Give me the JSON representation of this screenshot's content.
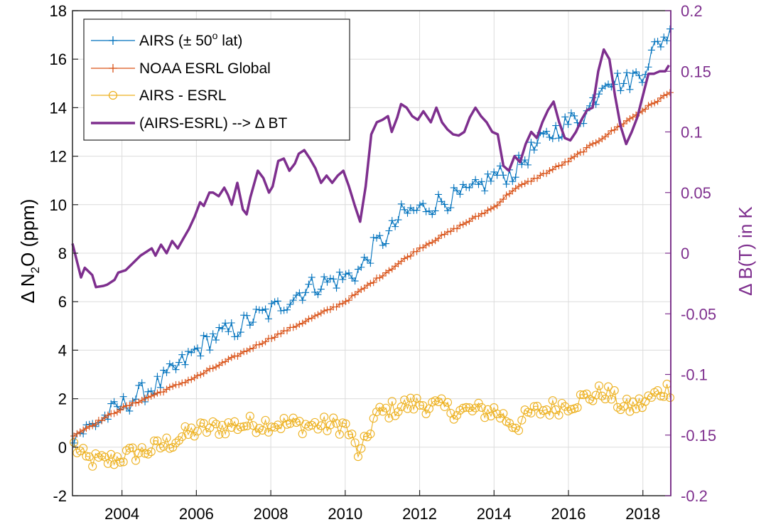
{
  "chart_data": {
    "type": "line",
    "x_ticks": [
      "2004",
      "2006",
      "2008",
      "2010",
      "2012",
      "2014",
      "2016",
      "2018"
    ],
    "x_tick_values": [
      2004,
      2006,
      2008,
      2010,
      2012,
      2014,
      2016,
      2018
    ],
    "xlim": [
      2002.67,
      2018.75
    ],
    "left_axis": {
      "label_prefix": "Δ N",
      "label_sub": "2",
      "label_suffix": "O (ppm)",
      "ylim": [
        -2,
        18
      ],
      "ticks": [
        "-2",
        "0",
        "2",
        "4",
        "6",
        "8",
        "10",
        "12",
        "14",
        "16",
        "18"
      ],
      "tick_values": [
        -2,
        0,
        2,
        4,
        6,
        8,
        10,
        12,
        14,
        16,
        18
      ]
    },
    "right_axis": {
      "label": "Δ B(T) in K",
      "ylim": [
        -0.2,
        0.2
      ],
      "ticks": [
        "-0.2",
        "-0.15",
        "-0.1",
        "-0.05",
        "0",
        "0.05",
        "0.1",
        "0.15",
        "0.2"
      ],
      "tick_values": [
        -0.2,
        -0.15,
        -0.1,
        -0.05,
        0,
        0.05,
        0.1,
        0.15,
        0.2
      ],
      "color": "#7E2F8E"
    },
    "grid": true,
    "legend_position": "top-left",
    "series": [
      {
        "name_main": "AIRS (± 50",
        "name_sup": "o",
        "name_tail": " lat)",
        "axis": "left",
        "color": "#0072BD",
        "marker": "plus",
        "anchors_x": [
          2002.7,
          2003.0,
          2003.5,
          2004.0,
          2004.5,
          2005.0,
          2005.5,
          2006.0,
          2006.5,
          2007.0,
          2007.5,
          2008.0,
          2008.5,
          2009.0,
          2009.5,
          2010.0,
          2010.4,
          2010.8,
          2011.2,
          2011.5,
          2012.0,
          2012.5,
          2013.0,
          2013.5,
          2014.0,
          2014.5,
          2015.0,
          2015.5,
          2016.0,
          2016.5,
          2017.0,
          2017.5,
          2018.0,
          2018.3,
          2018.6
        ],
        "anchors_y": [
          0.5,
          0.7,
          1.2,
          1.7,
          2.2,
          2.6,
          3.3,
          4.0,
          4.6,
          4.8,
          5.3,
          5.6,
          6.1,
          6.6,
          6.8,
          7.0,
          7.3,
          8.3,
          8.8,
          9.6,
          9.8,
          10.1,
          10.3,
          10.6,
          11.2,
          11.3,
          12.2,
          12.9,
          13.4,
          13.8,
          15.3,
          15.0,
          15.5,
          16.4,
          17.0
        ],
        "noise": 0.45
      },
      {
        "name": "NOAA ESRL Global",
        "axis": "left",
        "color": "#D95319",
        "marker": "plus",
        "anchors_x": [
          2002.7,
          2004.0,
          2006.0,
          2008.0,
          2010.0,
          2012.0,
          2014.0,
          2014.5,
          2016.0,
          2018.0,
          2018.7
        ],
        "anchors_y": [
          0.5,
          1.6,
          2.9,
          4.5,
          6.0,
          8.2,
          9.9,
          10.6,
          11.8,
          13.9,
          14.6
        ],
        "noise": 0.05
      },
      {
        "name": "AIRS - ESRL",
        "axis": "left",
        "color": "#EDB120",
        "marker": "circle",
        "anchors_x": [
          2002.7,
          2003.0,
          2003.5,
          2004.0,
          2005.0,
          2006.0,
          2007.0,
          2008.0,
          2009.0,
          2010.0,
          2010.4,
          2010.8,
          2011.5,
          2012.0,
          2013.0,
          2014.0,
          2014.6,
          2015.0,
          2016.0,
          2017.0,
          2017.5,
          2018.0,
          2018.6
        ],
        "anchors_y": [
          0.1,
          -0.5,
          -0.6,
          -0.4,
          0.0,
          0.7,
          0.9,
          1.0,
          0.9,
          0.9,
          -0.4,
          1.3,
          1.7,
          1.8,
          1.5,
          1.5,
          0.9,
          1.4,
          1.8,
          2.3,
          1.6,
          1.8,
          2.4
        ],
        "noise": 0.38
      },
      {
        "name": "(AIRS-ESRL) --> Δ BT",
        "axis": "right",
        "color": "#7E2F8E",
        "marker": "none",
        "x": [
          2002.67,
          2002.9,
          2003.0,
          2003.2,
          2003.3,
          2003.5,
          2003.6,
          2003.8,
          2003.9,
          2004.1,
          2004.3,
          2004.5,
          2004.6,
          2004.8,
          2004.9,
          2005.05,
          2005.2,
          2005.35,
          2005.5,
          2005.65,
          2005.8,
          2005.95,
          2006.1,
          2006.2,
          2006.35,
          2006.45,
          2006.6,
          2006.75,
          2006.85,
          2006.95,
          2007.1,
          2007.25,
          2007.35,
          2007.45,
          2007.65,
          2007.8,
          2007.95,
          2008.05,
          2008.2,
          2008.35,
          2008.5,
          2008.65,
          2008.75,
          2008.9,
          2009.05,
          2009.2,
          2009.35,
          2009.5,
          2009.65,
          2009.8,
          2009.95,
          2010.1,
          2010.25,
          2010.4,
          2010.55,
          2010.7,
          2010.85,
          2011.0,
          2011.15,
          2011.25,
          2011.4,
          2011.5,
          2011.65,
          2011.8,
          2011.95,
          2012.1,
          2012.3,
          2012.45,
          2012.6,
          2012.75,
          2012.9,
          2013.05,
          2013.2,
          2013.35,
          2013.5,
          2013.65,
          2013.8,
          2013.95,
          2014.1,
          2014.25,
          2014.4,
          2014.55,
          2014.7,
          2014.85,
          2015.0,
          2015.15,
          2015.3,
          2015.45,
          2015.6,
          2015.75,
          2015.9,
          2016.05,
          2016.2,
          2016.35,
          2016.5,
          2016.65,
          2016.8,
          2016.95,
          2017.1,
          2017.25,
          2017.4,
          2017.55,
          2017.7,
          2017.85,
          2018.0,
          2018.15,
          2018.3,
          2018.45,
          2018.6,
          2018.7
        ],
        "y": [
          0.008,
          -0.02,
          -0.012,
          -0.018,
          -0.028,
          -0.027,
          -0.026,
          -0.022,
          -0.016,
          -0.014,
          -0.008,
          -0.002,
          0.0,
          0.004,
          -0.002,
          0.007,
          0.0,
          0.01,
          0.004,
          0.012,
          0.02,
          0.03,
          0.042,
          0.039,
          0.05,
          0.05,
          0.047,
          0.054,
          0.048,
          0.04,
          0.058,
          0.036,
          0.032,
          0.046,
          0.068,
          0.062,
          0.05,
          0.055,
          0.076,
          0.078,
          0.068,
          0.074,
          0.082,
          0.085,
          0.078,
          0.07,
          0.058,
          0.064,
          0.058,
          0.064,
          0.068,
          0.055,
          0.04,
          0.026,
          0.055,
          0.098,
          0.108,
          0.11,
          0.113,
          0.1,
          0.112,
          0.123,
          0.12,
          0.113,
          0.11,
          0.117,
          0.108,
          0.12,
          0.108,
          0.102,
          0.098,
          0.097,
          0.1,
          0.112,
          0.12,
          0.113,
          0.108,
          0.1,
          0.098,
          0.072,
          0.068,
          0.08,
          0.075,
          0.09,
          0.1,
          0.095,
          0.108,
          0.118,
          0.125,
          0.108,
          0.095,
          0.093,
          0.1,
          0.11,
          0.118,
          0.12,
          0.15,
          0.168,
          0.16,
          0.13,
          0.105,
          0.09,
          0.1,
          0.112,
          0.13,
          0.148,
          0.148,
          0.15,
          0.15,
          0.155
        ]
      }
    ]
  }
}
